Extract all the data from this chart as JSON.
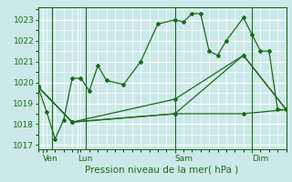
{
  "xlabel": "Pression niveau de la mer( hPa )",
  "bg_color": "#cce8e8",
  "grid_color": "#ffffff",
  "line_color": "#1a6b1a",
  "ylim": [
    1016.8,
    1023.6
  ],
  "yticks": [
    1017,
    1018,
    1019,
    1020,
    1021,
    1022,
    1023
  ],
  "xlim": [
    0,
    14.5
  ],
  "day_labels": [
    "Ven",
    "Lun",
    "Sam",
    "Dim"
  ],
  "day_positions": [
    0.3,
    2.3,
    8.0,
    12.5
  ],
  "day_vlines": [
    0.8,
    2.8,
    8.0,
    12.5
  ],
  "series1_x": [
    0.0,
    0.5,
    1.0,
    1.5,
    2.0,
    2.5,
    3.0,
    3.5,
    4.0,
    5.0,
    6.0,
    7.0,
    8.0,
    8.5,
    9.0,
    9.5,
    10.0,
    10.5,
    11.0,
    12.0,
    12.5,
    13.0,
    13.5,
    14.0,
    14.5
  ],
  "series1_y": [
    1019.8,
    1018.6,
    1017.3,
    1018.2,
    1020.2,
    1020.2,
    1019.6,
    1020.8,
    1020.1,
    1019.9,
    1021.0,
    1022.8,
    1023.0,
    1022.9,
    1023.3,
    1023.3,
    1021.5,
    1021.3,
    1022.0,
    1023.1,
    1022.3,
    1021.5,
    1021.5,
    1018.7,
    1018.7
  ],
  "series2_x": [
    0.0,
    2.0,
    8.0,
    12.0,
    14.5
  ],
  "series2_y": [
    1019.8,
    1018.1,
    1018.5,
    1018.5,
    1018.7
  ],
  "series3_x": [
    0.0,
    2.0,
    8.0,
    12.0,
    14.5
  ],
  "series3_y": [
    1019.8,
    1018.1,
    1018.5,
    1021.3,
    1018.7
  ],
  "series4_x": [
    0.0,
    2.0,
    8.0,
    12.0,
    14.5
  ],
  "series4_y": [
    1019.8,
    1018.1,
    1019.2,
    1021.3,
    1018.7
  ],
  "xlabel_fontsize": 7.5,
  "tick_labelsize": 6.5,
  "lw": 0.9,
  "ms": 2.0
}
